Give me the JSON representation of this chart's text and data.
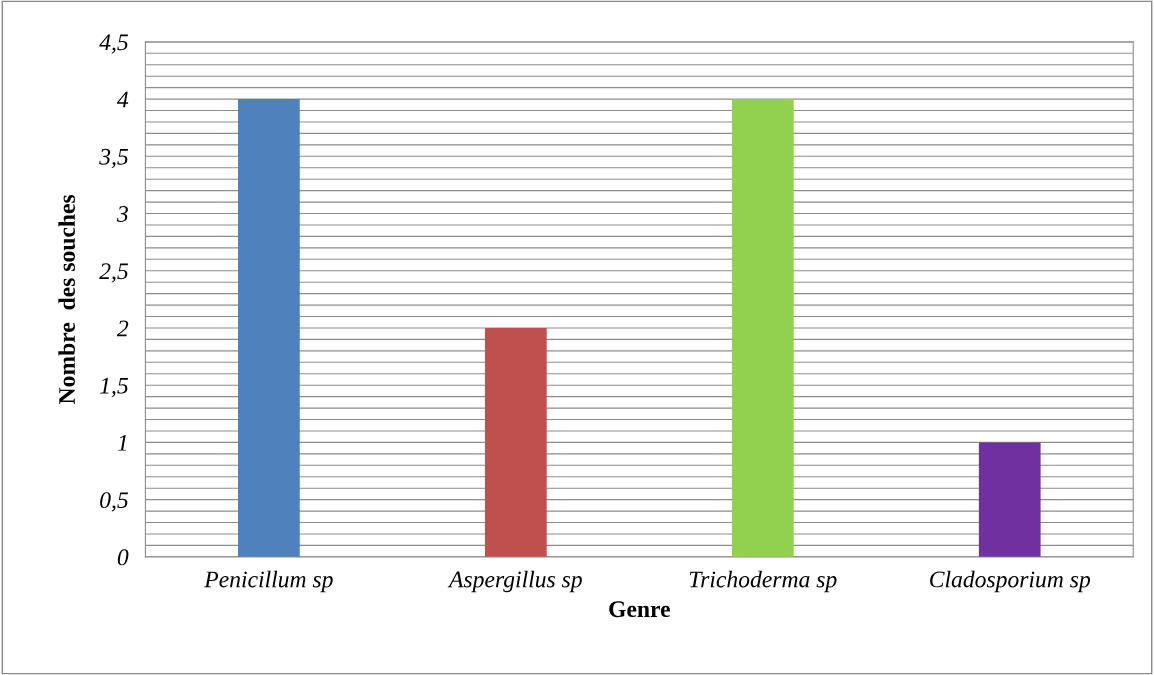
{
  "chart_data": {
    "type": "bar",
    "xlabel": "Genre",
    "ylabel": "Nombre  des souches",
    "categories": [
      "Penicillum sp",
      "Aspergillus sp",
      "Trichoderma sp",
      "Cladosporium sp"
    ],
    "values": [
      4,
      2,
      4,
      1
    ],
    "colors": [
      "#4f81bd",
      "#c0504d",
      "#92d050",
      "#7030a0"
    ],
    "ylim": [
      0,
      4.5
    ],
    "yticks": [
      {
        "value": 0,
        "label": "0"
      },
      {
        "value": 0.1,
        "label": null
      },
      {
        "value": 0.2,
        "label": null
      },
      {
        "value": 0.3,
        "label": null
      },
      {
        "value": 0.4,
        "label": null
      },
      {
        "value": 0.5,
        "label": "0,5"
      },
      {
        "value": 0.6,
        "label": null
      },
      {
        "value": 0.7,
        "label": null
      },
      {
        "value": 0.8,
        "label": null
      },
      {
        "value": 0.9,
        "label": null
      },
      {
        "value": 1,
        "label": "1"
      },
      {
        "value": 1.1,
        "label": null
      },
      {
        "value": 1.2,
        "label": null
      },
      {
        "value": 1.3,
        "label": null
      },
      {
        "value": 1.4,
        "label": null
      },
      {
        "value": 1.5,
        "label": "1,5"
      },
      {
        "value": 1.6,
        "label": null
      },
      {
        "value": 1.7,
        "label": null
      },
      {
        "value": 1.8,
        "label": null
      },
      {
        "value": 1.9,
        "label": null
      },
      {
        "value": 2,
        "label": "2"
      },
      {
        "value": 2.1,
        "label": null
      },
      {
        "value": 2.2,
        "label": null
      },
      {
        "value": 2.3,
        "label": null
      },
      {
        "value": 2.4,
        "label": null
      },
      {
        "value": 2.5,
        "label": "2,5"
      },
      {
        "value": 2.6,
        "label": null
      },
      {
        "value": 2.7,
        "label": null
      },
      {
        "value": 2.8,
        "label": null
      },
      {
        "value": 2.9,
        "label": null
      },
      {
        "value": 3,
        "label": "3"
      },
      {
        "value": 3.1,
        "label": null
      },
      {
        "value": 3.2,
        "label": null
      },
      {
        "value": 3.3,
        "label": null
      },
      {
        "value": 3.4,
        "label": null
      },
      {
        "value": 3.5,
        "label": "3,5"
      },
      {
        "value": 3.6,
        "label": null
      },
      {
        "value": 3.7,
        "label": null
      },
      {
        "value": 3.8,
        "label": null
      },
      {
        "value": 3.9,
        "label": null
      },
      {
        "value": 4,
        "label": "4"
      },
      {
        "value": 4.1,
        "label": null
      },
      {
        "value": 4.2,
        "label": null
      },
      {
        "value": 4.3,
        "label": null
      },
      {
        "value": 4.4,
        "label": null
      },
      {
        "value": 4.5,
        "label": "4,5"
      }
    ],
    "grid": "y"
  }
}
